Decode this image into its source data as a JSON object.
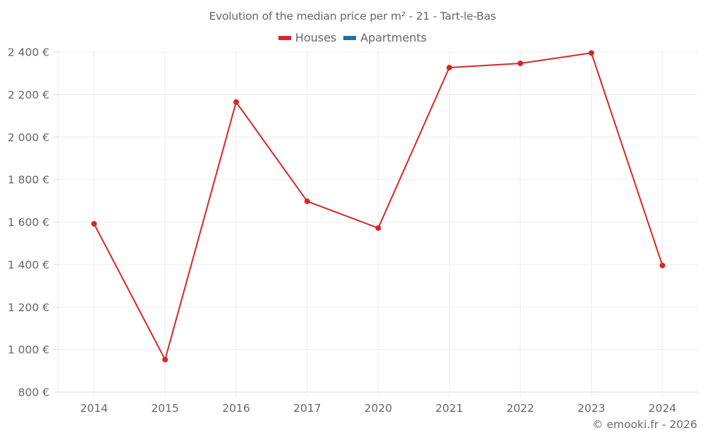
{
  "chart": {
    "title": "Evolution of the median price per m² - 21 - Tart-le-Bas",
    "credit": "© emooki.fr - 2026",
    "legend": [
      {
        "label": "Houses",
        "color": "#d62728"
      },
      {
        "label": "Apartments",
        "color": "#1f6fa8"
      }
    ]
  },
  "chart_data": {
    "type": "line",
    "title": "Evolution of the median price per m² - 21 - Tart-le-Bas",
    "xlabel": "",
    "ylabel": "",
    "categories": [
      "2014",
      "2015",
      "2016",
      "2017",
      "2020",
      "2021",
      "2022",
      "2023",
      "2024"
    ],
    "series": [
      {
        "name": "Houses",
        "color": "#d62728",
        "values": [
          1592,
          953,
          2165,
          1698,
          1572,
          2327,
          2347,
          2396,
          1396
        ]
      },
      {
        "name": "Apartments",
        "color": "#1f6fa8",
        "values": []
      }
    ],
    "yticks": [
      "800 €",
      "1 000 €",
      "1 200 €",
      "1 400 €",
      "1 600 €",
      "1 800 €",
      "2 000 €",
      "2 200 €",
      "2 400 €"
    ],
    "ylim": [
      800,
      2400
    ],
    "grid": true,
    "legend_position": "top"
  }
}
